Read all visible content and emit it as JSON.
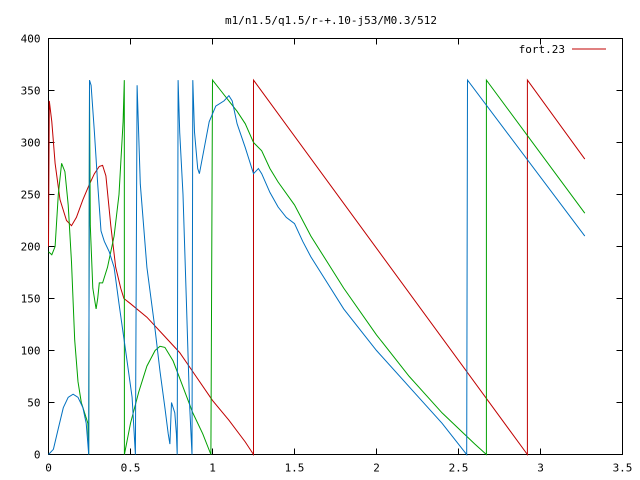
{
  "chart_data": {
    "type": "line",
    "title": "m1/n1.5/q1.5/r-+.10-j53/M0.3/512",
    "xlabel": "",
    "ylabel": "",
    "xlim": [
      0,
      3.5
    ],
    "ylim": [
      0,
      400
    ],
    "x_ticks": [
      {
        "value": 0,
        "label": "0"
      },
      {
        "value": 0.5,
        "label": "0.5"
      },
      {
        "value": 1,
        "label": "1"
      },
      {
        "value": 1.5,
        "label": "1.5"
      },
      {
        "value": 2,
        "label": "2"
      },
      {
        "value": 2.5,
        "label": "2.5"
      },
      {
        "value": 3,
        "label": "3"
      },
      {
        "value": 3.5,
        "label": "3.5"
      }
    ],
    "y_ticks": [
      {
        "value": 0,
        "label": "0"
      },
      {
        "value": 50,
        "label": "50"
      },
      {
        "value": 100,
        "label": "100"
      },
      {
        "value": 150,
        "label": "150"
      },
      {
        "value": 200,
        "label": "200"
      },
      {
        "value": 250,
        "label": "250"
      },
      {
        "value": 300,
        "label": "300"
      },
      {
        "value": 350,
        "label": "350"
      },
      {
        "value": 400,
        "label": "400"
      }
    ],
    "grid": false,
    "legend": {
      "position": "top-right",
      "entries": [
        "fort.23"
      ]
    },
    "series": [
      {
        "name": "fort.23",
        "color": "#c00000",
        "points": [
          [
            0.0,
            200
          ],
          [
            0.005,
            340
          ],
          [
            0.02,
            320
          ],
          [
            0.04,
            280
          ],
          [
            0.07,
            245
          ],
          [
            0.11,
            225
          ],
          [
            0.14,
            220
          ],
          [
            0.17,
            228
          ],
          [
            0.21,
            245
          ],
          [
            0.25,
            260
          ],
          [
            0.28,
            270
          ],
          [
            0.31,
            277
          ],
          [
            0.33,
            278
          ],
          [
            0.35,
            268
          ],
          [
            0.38,
            220
          ],
          [
            0.41,
            180
          ],
          [
            0.44,
            160
          ],
          [
            0.46,
            150
          ],
          [
            0.5,
            145
          ],
          [
            0.6,
            132
          ],
          [
            0.7,
            115
          ],
          [
            0.8,
            98
          ],
          [
            0.9,
            75
          ],
          [
            1.0,
            52
          ],
          [
            1.1,
            33
          ],
          [
            1.2,
            12
          ],
          [
            1.25,
            0
          ],
          [
            1.25,
            360
          ],
          [
            2.92,
            0
          ],
          [
            2.92,
            360
          ],
          [
            3.27,
            284
          ]
        ]
      },
      {
        "name": "",
        "color": "#00a000",
        "points": [
          [
            0.0,
            195
          ],
          [
            0.02,
            192
          ],
          [
            0.04,
            200
          ],
          [
            0.06,
            250
          ],
          [
            0.08,
            280
          ],
          [
            0.1,
            272
          ],
          [
            0.12,
            240
          ],
          [
            0.14,
            185
          ],
          [
            0.16,
            110
          ],
          [
            0.18,
            70
          ],
          [
            0.2,
            50
          ],
          [
            0.22,
            40
          ],
          [
            0.24,
            30
          ],
          [
            0.245,
            0
          ],
          [
            0.25,
            350
          ],
          [
            0.255,
            220
          ],
          [
            0.27,
            160
          ],
          [
            0.29,
            140
          ],
          [
            0.3,
            150
          ],
          [
            0.31,
            165
          ],
          [
            0.33,
            165
          ],
          [
            0.36,
            180
          ],
          [
            0.4,
            210
          ],
          [
            0.43,
            250
          ],
          [
            0.455,
            320
          ],
          [
            0.462,
            360
          ],
          [
            0.463,
            0
          ],
          [
            0.5,
            30
          ],
          [
            0.55,
            60
          ],
          [
            0.6,
            85
          ],
          [
            0.65,
            100
          ],
          [
            0.68,
            104
          ],
          [
            0.71,
            103
          ],
          [
            0.76,
            90
          ],
          [
            0.82,
            65
          ],
          [
            0.88,
            40
          ],
          [
            0.94,
            20
          ],
          [
            0.99,
            0
          ],
          [
            1.0,
            360
          ],
          [
            1.05,
            350
          ],
          [
            1.1,
            340
          ],
          [
            1.15,
            330
          ],
          [
            1.2,
            318
          ],
          [
            1.25,
            300
          ],
          [
            1.3,
            292
          ],
          [
            1.35,
            275
          ],
          [
            1.4,
            262
          ],
          [
            1.5,
            240
          ],
          [
            1.6,
            210
          ],
          [
            1.8,
            160
          ],
          [
            2.0,
            115
          ],
          [
            2.2,
            75
          ],
          [
            2.4,
            40
          ],
          [
            2.6,
            10
          ],
          [
            2.67,
            0
          ],
          [
            2.67,
            360
          ],
          [
            3.27,
            232
          ]
        ]
      },
      {
        "name": "",
        "color": "#0070c0",
        "points": [
          [
            0.0,
            0
          ],
          [
            0.03,
            5
          ],
          [
            0.06,
            25
          ],
          [
            0.09,
            45
          ],
          [
            0.12,
            55
          ],
          [
            0.15,
            58
          ],
          [
            0.18,
            55
          ],
          [
            0.21,
            45
          ],
          [
            0.23,
            30
          ],
          [
            0.24,
            10
          ],
          [
            0.245,
            0
          ],
          [
            0.25,
            360
          ],
          [
            0.26,
            355
          ],
          [
            0.28,
            310
          ],
          [
            0.3,
            260
          ],
          [
            0.32,
            215
          ],
          [
            0.34,
            205
          ],
          [
            0.37,
            195
          ],
          [
            0.4,
            180
          ],
          [
            0.43,
            145
          ],
          [
            0.47,
            100
          ],
          [
            0.51,
            55
          ],
          [
            0.53,
            0
          ],
          [
            0.54,
            355
          ],
          [
            0.56,
            260
          ],
          [
            0.6,
            180
          ],
          [
            0.65,
            120
          ],
          [
            0.68,
            80
          ],
          [
            0.71,
            45
          ],
          [
            0.73,
            20
          ],
          [
            0.74,
            10
          ],
          [
            0.75,
            50
          ],
          [
            0.77,
            40
          ],
          [
            0.78,
            20
          ],
          [
            0.785,
            0
          ],
          [
            0.79,
            360
          ],
          [
            0.8,
            310
          ],
          [
            0.82,
            250
          ],
          [
            0.84,
            150
          ],
          [
            0.86,
            50
          ],
          [
            0.875,
            0
          ],
          [
            0.88,
            360
          ],
          [
            0.89,
            310
          ],
          [
            0.91,
            275
          ],
          [
            0.92,
            270
          ],
          [
            0.95,
            295
          ],
          [
            0.98,
            320
          ],
          [
            1.02,
            335
          ],
          [
            1.07,
            340
          ],
          [
            1.1,
            345
          ],
          [
            1.12,
            340
          ],
          [
            1.15,
            318
          ],
          [
            1.2,
            295
          ],
          [
            1.22,
            285
          ],
          [
            1.25,
            270
          ],
          [
            1.28,
            275
          ],
          [
            1.3,
            270
          ],
          [
            1.35,
            252
          ],
          [
            1.4,
            238
          ],
          [
            1.45,
            228
          ],
          [
            1.5,
            222
          ],
          [
            1.55,
            205
          ],
          [
            1.6,
            190
          ],
          [
            1.7,
            165
          ],
          [
            1.8,
            140
          ],
          [
            2.0,
            100
          ],
          [
            2.2,
            65
          ],
          [
            2.4,
            30
          ],
          [
            2.55,
            0
          ],
          [
            2.555,
            360
          ],
          [
            3.27,
            210
          ]
        ]
      }
    ]
  }
}
